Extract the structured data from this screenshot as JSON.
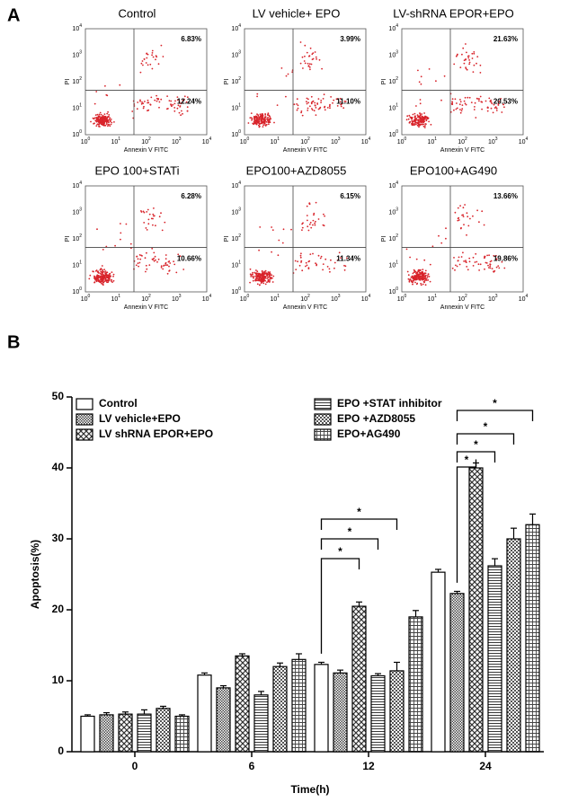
{
  "panel_a": {
    "label": "A",
    "x_label": "Annexin V FITC",
    "y_label": "PI",
    "tick_base": "10",
    "tick_exponents": [
      "0",
      "1",
      "2",
      "3",
      "4"
    ],
    "plots": [
      {
        "title": "Control",
        "upper_right": "6.83%",
        "lower_right": "12.24%"
      },
      {
        "title": "LV vehicle+ EPO",
        "upper_right": "3.99%",
        "lower_right": "11.10%"
      },
      {
        "title": "LV-shRNA EPOR+EPO",
        "upper_right": "21.63%",
        "lower_right": "20.53%"
      },
      {
        "title": "EPO 100+STATi",
        "upper_right": "6.28%",
        "lower_right": "10.66%"
      },
      {
        "title": "EPO100+AZD8055",
        "upper_right": "6.15%",
        "lower_right": "11.34%"
      },
      {
        "title": "EPO100+AG490",
        "upper_right": "13.66%",
        "lower_right": "19.86%"
      }
    ]
  },
  "chart_data": {
    "type": "bar",
    "panel_label": "B",
    "x_label": "Time(h)",
    "y_label": "Apoptosis(%)",
    "categories": [
      "0",
      "6",
      "12",
      "24"
    ],
    "series": [
      {
        "name": "Control",
        "values": [
          5.0,
          10.8,
          12.3,
          25.3
        ],
        "errors": [
          0.2,
          0.3,
          0.3,
          0.4
        ]
      },
      {
        "name": "LV vehicle+EPO",
        "values": [
          5.2,
          9.0,
          11.1,
          22.3
        ],
        "errors": [
          0.3,
          0.3,
          0.4,
          0.3
        ]
      },
      {
        "name": "LV shRNA EPOR+EPO",
        "values": [
          5.3,
          13.5,
          20.5,
          40.0
        ],
        "errors": [
          0.3,
          0.3,
          0.6,
          0.7
        ]
      },
      {
        "name": "EPO +STAT inhibitor",
        "values": [
          5.3,
          8.0,
          10.7,
          26.2
        ],
        "errors": [
          0.6,
          0.5,
          0.3,
          1.0
        ]
      },
      {
        "name": "EPO +AZD8055",
        "values": [
          6.1,
          12.0,
          11.4,
          30.0
        ],
        "errors": [
          0.3,
          0.5,
          1.2,
          1.5
        ]
      },
      {
        "name": "EPO+AG490",
        "values": [
          5.0,
          13.0,
          19.0,
          32.0
        ],
        "errors": [
          0.2,
          0.8,
          0.9,
          1.5
        ]
      }
    ],
    "ylim": [
      0,
      50
    ],
    "yticks": [
      0,
      10,
      20,
      30,
      40,
      50
    ],
    "annotations": [
      "*",
      "*",
      "*",
      "*",
      "*",
      "*",
      "*"
    ]
  }
}
